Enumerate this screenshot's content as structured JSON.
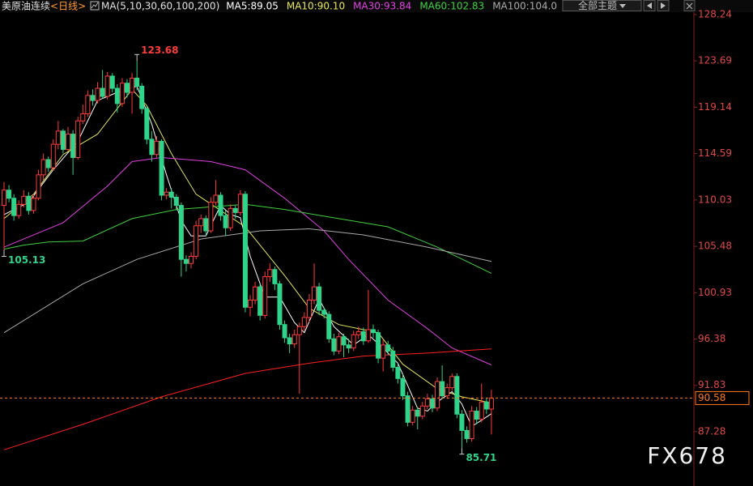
{
  "chart_data": {
    "type": "candlestick",
    "title": "美原油连续",
    "period": "<日线>",
    "indicator": "MA(5,10,30,60,100,200)",
    "theme_button": "全部主题",
    "watermark": "FX678",
    "up_color": "#ff3b3b",
    "down_color": "#2fd38a",
    "ylim": [
      82.74,
      129.67
    ],
    "yticks": [
      128.24,
      123.69,
      119.14,
      114.59,
      110.03,
      105.48,
      100.93,
      96.38,
      91.83,
      87.28
    ],
    "last_price": 90.58,
    "last_price_color": "#ff7a1a",
    "annotations": [
      {
        "x": 27,
        "y": 123.68,
        "color": "#ff3b3b"
      },
      {
        "x": 0,
        "y": 105.13,
        "color": "#2fd38a"
      },
      {
        "x": 93,
        "y": 85.71,
        "color": "#2fd38a"
      }
    ],
    "ohlc": [
      [
        109.5,
        111.8,
        105.13,
        111.0
      ],
      [
        111.0,
        111.5,
        109.8,
        110.2
      ],
      [
        110.2,
        110.6,
        108.0,
        108.5
      ],
      [
        108.5,
        110.0,
        108.2,
        109.6
      ],
      [
        109.6,
        111.0,
        109.3,
        110.4
      ],
      [
        110.4,
        110.8,
        108.6,
        109.0
      ],
      [
        109.0,
        110.6,
        108.7,
        110.2
      ],
      [
        110.2,
        113.0,
        110.0,
        112.5
      ],
      [
        112.5,
        114.6,
        112.0,
        114.0
      ],
      [
        114.0,
        114.3,
        112.8,
        113.2
      ],
      [
        113.2,
        116.0,
        112.9,
        115.5
      ],
      [
        115.5,
        117.8,
        115.0,
        116.8
      ],
      [
        116.8,
        117.0,
        114.6,
        115.0
      ],
      [
        115.0,
        117.2,
        114.8,
        116.5
      ],
      [
        116.5,
        116.9,
        112.5,
        114.2
      ],
      [
        114.2,
        118.2,
        114.0,
        117.8
      ],
      [
        117.8,
        119.4,
        117.5,
        118.5
      ],
      [
        118.5,
        120.8,
        118.2,
        120.3
      ],
      [
        120.3,
        120.9,
        119.3,
        119.8
      ],
      [
        119.8,
        121.6,
        119.5,
        121.0
      ],
      [
        121.0,
        122.8,
        120.0,
        120.2
      ],
      [
        120.2,
        122.6,
        119.9,
        122.2
      ],
      [
        122.2,
        122.5,
        120.6,
        121.0
      ],
      [
        121.0,
        121.4,
        118.6,
        119.5
      ],
      [
        119.5,
        122.0,
        119.2,
        121.5
      ],
      [
        121.5,
        121.9,
        120.1,
        120.6
      ],
      [
        120.6,
        122.5,
        118.5,
        122.0
      ],
      [
        122.0,
        123.68,
        120.8,
        121.2
      ],
      [
        121.2,
        121.5,
        118.5,
        119.0
      ],
      [
        119.0,
        119.3,
        115.5,
        116.0
      ],
      [
        116.0,
        116.8,
        113.8,
        114.5
      ],
      [
        114.5,
        116.3,
        114.2,
        115.8
      ],
      [
        115.8,
        116.0,
        110.0,
        110.5
      ],
      [
        110.5,
        111.2,
        110.1,
        110.8
      ],
      [
        110.8,
        111.2,
        109.2,
        110.3
      ],
      [
        110.3,
        110.6,
        109.0,
        109.5
      ],
      [
        109.5,
        109.8,
        102.5,
        104.2
      ],
      [
        104.2,
        104.6,
        103.0,
        103.8
      ],
      [
        103.8,
        104.9,
        103.3,
        104.5
      ],
      [
        104.5,
        108.0,
        104.2,
        107.5
      ],
      [
        107.5,
        108.6,
        106.8,
        108.2
      ],
      [
        108.2,
        108.5,
        106.5,
        107.0
      ],
      [
        107.0,
        110.3,
        106.8,
        109.8
      ],
      [
        109.8,
        112.0,
        109.5,
        110.5
      ],
      [
        110.5,
        110.8,
        108.0,
        108.5
      ],
      [
        108.5,
        109.0,
        106.5,
        107.3
      ],
      [
        107.3,
        109.6,
        107.0,
        109.2
      ],
      [
        109.2,
        109.5,
        108.2,
        108.8
      ],
      [
        108.8,
        111.0,
        108.5,
        110.6
      ],
      [
        110.6,
        110.9,
        99.0,
        99.5
      ],
      [
        99.5,
        100.7,
        98.6,
        100.2
      ],
      [
        100.2,
        102.0,
        99.8,
        101.5
      ],
      [
        101.5,
        101.8,
        98.2,
        98.7
      ],
      [
        98.7,
        103.0,
        98.4,
        102.5
      ],
      [
        102.5,
        103.8,
        102.0,
        103.2
      ],
      [
        103.2,
        103.5,
        101.2,
        101.8
      ],
      [
        101.8,
        102.1,
        97.3,
        97.8
      ],
      [
        97.8,
        98.2,
        96.0,
        96.5
      ],
      [
        96.5,
        96.9,
        95.0,
        95.9
      ],
      [
        95.9,
        97.3,
        95.5,
        96.8
      ],
      [
        96.8,
        98.0,
        91.0,
        97.6
      ],
      [
        97.6,
        99.0,
        97.2,
        98.5
      ],
      [
        98.5,
        100.8,
        98.0,
        100.2
      ],
      [
        100.2,
        103.8,
        99.8,
        101.5
      ],
      [
        101.5,
        101.9,
        98.7,
        99.2
      ],
      [
        99.2,
        99.5,
        98.4,
        98.8
      ],
      [
        98.8,
        99.1,
        96.0,
        96.4
      ],
      [
        96.4,
        96.9,
        94.8,
        95.2
      ],
      [
        95.2,
        97.0,
        94.9,
        96.6
      ],
      [
        96.6,
        96.9,
        94.6,
        95.8
      ],
      [
        95.8,
        96.4,
        95.0,
        95.5
      ],
      [
        95.5,
        97.2,
        95.2,
        96.8
      ],
      [
        96.8,
        97.6,
        96.4,
        97.1
      ],
      [
        97.1,
        97.5,
        95.8,
        96.2
      ],
      [
        96.2,
        101.2,
        96.0,
        97.3
      ],
      [
        97.3,
        97.8,
        96.5,
        97.0
      ],
      [
        97.0,
        97.3,
        94.0,
        94.5
      ],
      [
        94.5,
        96.3,
        93.2,
        95.8
      ],
      [
        95.8,
        96.2,
        94.8,
        95.2
      ],
      [
        95.2,
        95.6,
        93.2,
        93.6
      ],
      [
        93.6,
        94.0,
        92.0,
        92.5
      ],
      [
        92.5,
        92.9,
        90.4,
        90.8
      ],
      [
        90.8,
        91.2,
        87.8,
        88.2
      ],
      [
        88.2,
        89.8,
        87.9,
        89.4
      ],
      [
        89.4,
        89.7,
        87.5,
        88.8
      ],
      [
        88.8,
        90.2,
        88.5,
        89.8
      ],
      [
        89.8,
        91.0,
        89.5,
        90.5
      ],
      [
        90.5,
        90.9,
        89.2,
        89.6
      ],
      [
        89.6,
        92.6,
        89.3,
        92.2
      ],
      [
        92.2,
        93.8,
        90.5,
        90.8
      ],
      [
        90.8,
        92.0,
        90.5,
        91.6
      ],
      [
        91.6,
        93.0,
        91.3,
        92.7
      ],
      [
        92.7,
        93.0,
        88.6,
        89.0
      ],
      [
        89.0,
        89.4,
        85.71,
        87.4
      ],
      [
        87.4,
        87.8,
        86.2,
        86.6
      ],
      [
        86.6,
        89.8,
        86.3,
        89.3
      ],
      [
        89.3,
        89.7,
        88.0,
        88.5
      ],
      [
        88.5,
        92.0,
        88.2,
        90.2
      ],
      [
        90.2,
        90.6,
        89.0,
        89.5
      ],
      [
        89.5,
        91.4,
        87.0,
        90.58
      ]
    ],
    "series": [
      {
        "name": "MA5:89.05",
        "color": "#ffffff",
        "x": [
          0,
          5,
          10,
          15,
          19,
          24,
          27,
          30,
          33,
          36,
          38,
          41,
          44,
          46,
          48,
          50,
          53,
          56,
          59,
          61,
          64,
          67,
          71,
          74,
          77,
          80,
          82,
          84,
          86,
          88,
          91,
          93,
          95,
          97,
          99
        ],
        "values": [
          108.6,
          109.8,
          113.0,
          115.8,
          119.8,
          120.8,
          121.2,
          117.5,
          112.5,
          108.0,
          106.5,
          106.5,
          109.5,
          108.6,
          108.3,
          104.5,
          100.5,
          100.5,
          98.0,
          97.0,
          100.3,
          97.6,
          95.8,
          96.8,
          95.5,
          94.0,
          91.8,
          89.6,
          89.3,
          90.2,
          91.2,
          90.0,
          87.8,
          88.4,
          89.05
        ]
      },
      {
        "name": "MA10:90.10",
        "color": "#e6e65a",
        "x": [
          0,
          6,
          12,
          19,
          26,
          29,
          34,
          39,
          44,
          49,
          53,
          57,
          62,
          68,
          76,
          81,
          88,
          93,
          99
        ],
        "values": [
          108.2,
          110.6,
          114.5,
          116.5,
          120.9,
          119.3,
          114.6,
          110.6,
          109.0,
          107.4,
          105.0,
          102.6,
          99.4,
          97.8,
          97.0,
          93.9,
          91.5,
          90.7,
          90.1
        ]
      },
      {
        "name": "MA30:93.84",
        "color": "#e040e0",
        "x": [
          0,
          12,
          21,
          26,
          32,
          42,
          49,
          57,
          65,
          70,
          78,
          86,
          91,
          99
        ],
        "values": [
          105.4,
          107.8,
          111.4,
          113.8,
          114.2,
          113.8,
          113.0,
          110.2,
          107.0,
          104.2,
          100.2,
          97.4,
          95.5,
          93.84
        ]
      },
      {
        "name": "MA60:102.83",
        "color": "#40d040",
        "x": [
          0,
          4,
          9,
          16,
          26,
          35,
          49,
          57,
          68,
          78,
          88,
          99
        ],
        "values": [
          105.2,
          105.6,
          105.9,
          106.0,
          108.2,
          109.1,
          109.6,
          109.1,
          108.2,
          107.4,
          105.4,
          102.83
        ]
      },
      {
        "name": "MA100:104.0",
        "color": "#a8a8a8",
        "x": [
          0,
          16,
          27,
          40,
          52,
          62,
          73,
          86,
          99
        ],
        "values": [
          97.0,
          101.8,
          104.2,
          106.2,
          107.0,
          107.2,
          106.6,
          105.4,
          104.0
        ]
      },
      {
        "color": "#ff2020",
        "x": [
          0,
          16,
          32,
          49,
          62,
          73,
          86,
          99
        ],
        "values": [
          85.5,
          88.0,
          90.7,
          93.0,
          94.0,
          94.7,
          95.0,
          95.4
        ]
      }
    ]
  }
}
